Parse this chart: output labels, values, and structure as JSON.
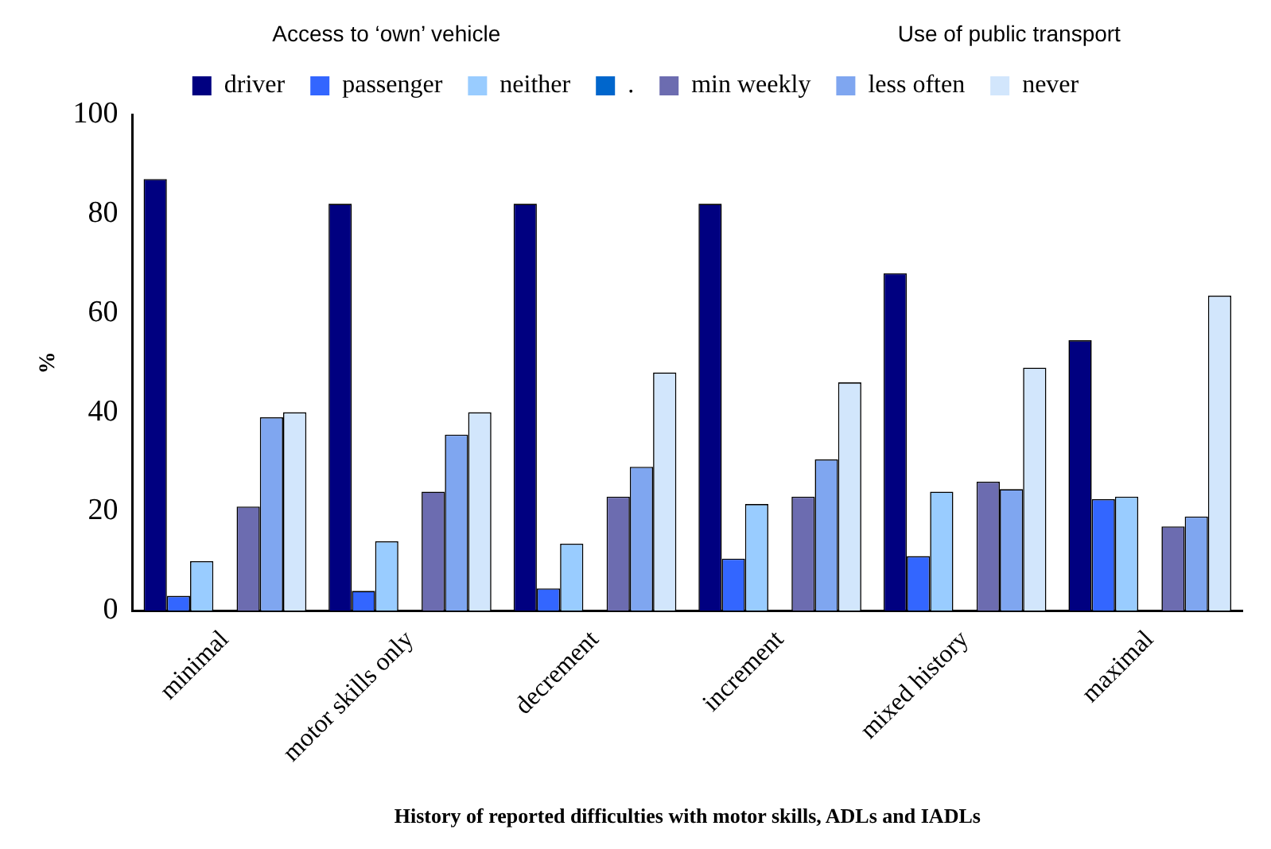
{
  "chart_data": {
    "type": "bar",
    "xlabel": "History of reported difficulties with motor skills, ADLs and IADLs",
    "ylabel": "%",
    "annotations": [
      "Access to ‘own’ vehicle",
      "Use of public transport"
    ],
    "categories": [
      "minimal",
      "motor skills only",
      "decrement",
      "increment",
      "mixed history",
      "maximal"
    ],
    "series": [
      {
        "name": "driver",
        "color": "#000080",
        "values": [
          87,
          82,
          82,
          82,
          68,
          54.5
        ]
      },
      {
        "name": "passenger",
        "color": "#3366ff",
        "values": [
          3,
          4,
          4.5,
          10.5,
          11,
          22.5
        ]
      },
      {
        "name": "neither",
        "color": "#99ccff",
        "values": [
          10,
          14,
          13.5,
          21.5,
          24,
          23
        ]
      },
      {
        "name": ".",
        "color": "#0066cc",
        "values": [
          null,
          null,
          null,
          null,
          null,
          null
        ]
      },
      {
        "name": "min weekly",
        "color": "#6c6cb0",
        "values": [
          21,
          24,
          23,
          23,
          26,
          17
        ]
      },
      {
        "name": "less often",
        "color": "#7fa6f0",
        "values": [
          39,
          35.5,
          29,
          30.5,
          24.5,
          19
        ]
      },
      {
        "name": "never",
        "color": "#d2e6fc",
        "values": [
          40,
          40,
          48,
          46,
          49,
          63.5
        ]
      }
    ],
    "ylim": [
      0,
      100
    ],
    "yticks": [
      0,
      20,
      40,
      60,
      80,
      100
    ],
    "grid": false,
    "legend": "top"
  }
}
